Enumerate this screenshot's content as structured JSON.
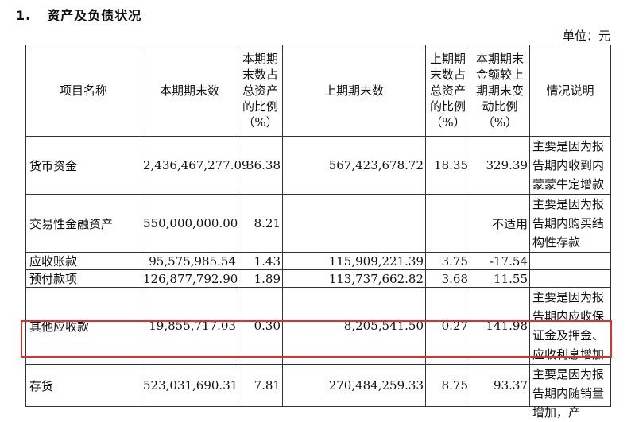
{
  "section": {
    "number": "1.",
    "title": "资产及负债状况"
  },
  "unit_label": "单位：元",
  "table": {
    "headers": {
      "item": "项目名称",
      "current_amount": "本期期末数",
      "current_ratio": "本期期末数占总资产的比例（%）",
      "prior_amount": "上期期末数",
      "prior_ratio": "上期期末数占总资产的比例（%）",
      "change": "本期期末金额较上期期末变动比例（%）",
      "note": "情况说明"
    },
    "rows": [
      {
        "item": "货币资金",
        "current_amount": "2,436,467,277.09",
        "current_ratio": "36.38",
        "prior_amount": "567,423,678.72",
        "prior_ratio": "18.35",
        "change": "329.39",
        "note": "主要是因为报告期内收到内蒙蒙牛定增款"
      },
      {
        "item": "交易性金融资产",
        "current_amount": "550,000,000.00",
        "current_ratio": "8.21",
        "prior_amount": "",
        "prior_ratio": "",
        "change": "不适用",
        "note": "主要是因为报告期内购买结构性存款"
      },
      {
        "item": "应收账款",
        "current_amount": "95,575,985.54",
        "current_ratio": "1.43",
        "prior_amount": "115,909,221.39",
        "prior_ratio": "3.75",
        "change": "-17.54",
        "note": ""
      },
      {
        "item": "预付款项",
        "current_amount": "126,877,792.90",
        "current_ratio": "1.89",
        "prior_amount": "113,737,662.82",
        "prior_ratio": "3.68",
        "change": "11.55",
        "note": ""
      },
      {
        "item": "其他应收款",
        "current_amount": "19,855,717.03",
        "current_ratio": "0.30",
        "prior_amount": "8,205,541.50",
        "prior_ratio": "0.27",
        "change": "141.98",
        "note": "主要是因为报告期内应收保证金及押金、应收利息增加"
      },
      {
        "item": "存货",
        "current_amount": "523,031,690.31",
        "current_ratio": "7.81",
        "prior_amount": "270,484,259.33",
        "prior_ratio": "8.75",
        "change": "93.37",
        "note": "主要是因为报告期内随销量增加，产"
      }
    ]
  },
  "highlight_color": "#e0302b"
}
